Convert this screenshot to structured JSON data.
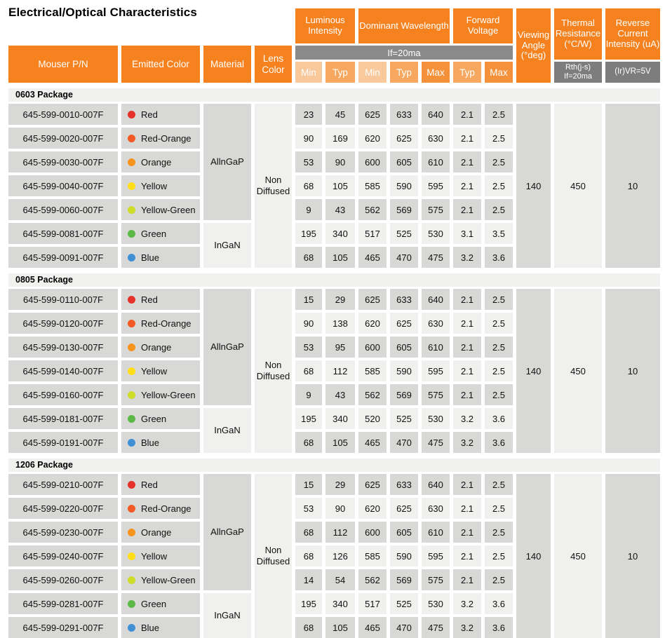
{
  "title": "Electrical/Optical Characteristics",
  "table": {
    "columns": {
      "mouser_pn": "Mouser P/N",
      "emitted_color": "Emitted Color",
      "material": "Material",
      "lens_color": "Lens Color",
      "condition_bar": "If=20ma",
      "groups": [
        {
          "label": "Luminous Intensity",
          "subcols": [
            "Min",
            "Typ"
          ]
        },
        {
          "label": "Dominant Wavelength",
          "subcols": [
            "Min",
            "Typ",
            "Max"
          ]
        },
        {
          "label": "Forward Voltage",
          "subcols": [
            "Typ",
            "Max"
          ]
        }
      ],
      "subcol_labels": [
        "Min",
        "Typ",
        "Min",
        "Typ",
        "Max",
        "Typ",
        "Max"
      ],
      "viewing_angle": "Viewing Angle (°deg)",
      "thermal_resistance": {
        "label": "Thermal Resistance (°C/W)",
        "condition": "Rth(j-s) If=20ma"
      },
      "reverse_current": {
        "label": "Reverse Current Intensity (uA)",
        "condition": "(Ir)VR=5V"
      }
    },
    "colors": {
      "header_orange": "#F5821F",
      "subcol_min": "#F9C89B",
      "subcol_typ": "#F7A75F",
      "subcol_max": "#F5913A",
      "condition_gray": "#8A8A8A",
      "dark_condition_gray": "#7D7D7D",
      "cell_gray": "#D8D8D6",
      "cell_light": "#F0F0EE"
    },
    "sections": [
      {
        "name": "0603 Package",
        "lens_color": "Non Diffused",
        "materials": [
          {
            "name": "AllnGaP",
            "row_span": 5
          },
          {
            "name": "InGaN",
            "row_span": 2
          }
        ],
        "viewing_angle": "140",
        "thermal_resistance": "450",
        "reverse_current": "10",
        "rows": [
          {
            "pn": "645-599-0010-007F",
            "color": "Red",
            "dot": "#E6332A",
            "values": [
              "23",
              "45",
              "625",
              "633",
              "640",
              "2.1",
              "2.5"
            ]
          },
          {
            "pn": "645-599-0020-007F",
            "color": "Red-Orange",
            "dot": "#F15A24",
            "values": [
              "90",
              "169",
              "620",
              "625",
              "630",
              "2.1",
              "2.5"
            ]
          },
          {
            "pn": "645-599-0030-007F",
            "color": "Orange",
            "dot": "#F7941E",
            "values": [
              "53",
              "90",
              "600",
              "605",
              "610",
              "2.1",
              "2.5"
            ]
          },
          {
            "pn": "645-599-0040-007F",
            "color": "Yellow",
            "dot": "#FFDE17",
            "values": [
              "68",
              "105",
              "585",
              "590",
              "595",
              "2.1",
              "2.5"
            ]
          },
          {
            "pn": "645-599-0060-007F",
            "color": "Yellow-Green",
            "dot": "#CDDC29",
            "values": [
              "9",
              "43",
              "562",
              "569",
              "575",
              "2.1",
              "2.5"
            ]
          },
          {
            "pn": "645-599-0081-007F",
            "color": "Green",
            "dot": "#5CB947",
            "values": [
              "195",
              "340",
              "517",
              "525",
              "530",
              "3.1",
              "3.5"
            ]
          },
          {
            "pn": "645-599-0091-007F",
            "color": "Blue",
            "dot": "#4090D5",
            "values": [
              "68",
              "105",
              "465",
              "470",
              "475",
              "3.2",
              "3.6"
            ]
          }
        ]
      },
      {
        "name": "0805 Package",
        "lens_color": "Non Diffused",
        "materials": [
          {
            "name": "AllnGaP",
            "row_span": 5
          },
          {
            "name": "InGaN",
            "row_span": 2
          }
        ],
        "viewing_angle": "140",
        "thermal_resistance": "450",
        "reverse_current": "10",
        "rows": [
          {
            "pn": "645-599-0110-007F",
            "color": "Red",
            "dot": "#E6332A",
            "values": [
              "15",
              "29",
              "625",
              "633",
              "640",
              "2.1",
              "2.5"
            ]
          },
          {
            "pn": "645-599-0120-007F",
            "color": "Red-Orange",
            "dot": "#F15A24",
            "values": [
              "90",
              "138",
              "620",
              "625",
              "630",
              "2.1",
              "2.5"
            ]
          },
          {
            "pn": "645-599-0130-007F",
            "color": "Orange",
            "dot": "#F7941E",
            "values": [
              "53",
              "95",
              "600",
              "605",
              "610",
              "2.1",
              "2.5"
            ]
          },
          {
            "pn": "645-599-0140-007F",
            "color": "Yellow",
            "dot": "#FFDE17",
            "values": [
              "68",
              "112",
              "585",
              "590",
              "595",
              "2.1",
              "2.5"
            ]
          },
          {
            "pn": "645-599-0160-007F",
            "color": "Yellow-Green",
            "dot": "#CDDC29",
            "values": [
              "9",
              "43",
              "562",
              "569",
              "575",
              "2.1",
              "2.5"
            ]
          },
          {
            "pn": "645-599-0181-007F",
            "color": "Green",
            "dot": "#5CB947",
            "values": [
              "195",
              "340",
              "520",
              "525",
              "530",
              "3.2",
              "3.6"
            ]
          },
          {
            "pn": "645-599-0191-007F",
            "color": "Blue",
            "dot": "#4090D5",
            "values": [
              "68",
              "105",
              "465",
              "470",
              "475",
              "3.2",
              "3.6"
            ]
          }
        ]
      },
      {
        "name": "1206 Package",
        "lens_color": "Non Diffused",
        "materials": [
          {
            "name": "AllnGaP",
            "row_span": 5
          },
          {
            "name": "InGaN",
            "row_span": 2
          }
        ],
        "viewing_angle": "140",
        "thermal_resistance": "450",
        "reverse_current": "10",
        "rows": [
          {
            "pn": "645-599-0210-007F",
            "color": "Red",
            "dot": "#E6332A",
            "values": [
              "15",
              "29",
              "625",
              "633",
              "640",
              "2.1",
              "2.5"
            ]
          },
          {
            "pn": "645-599-0220-007F",
            "color": "Red-Orange",
            "dot": "#F15A24",
            "values": [
              "53",
              "90",
              "620",
              "625",
              "630",
              "2.1",
              "2.5"
            ]
          },
          {
            "pn": "645-599-0230-007F",
            "color": "Orange",
            "dot": "#F7941E",
            "values": [
              "68",
              "112",
              "600",
              "605",
              "610",
              "2.1",
              "2.5"
            ]
          },
          {
            "pn": "645-599-0240-007F",
            "color": "Yellow",
            "dot": "#FFDE17",
            "values": [
              "68",
              "126",
              "585",
              "590",
              "595",
              "2.1",
              "2.5"
            ]
          },
          {
            "pn": "645-599-0260-007F",
            "color": "Yellow-Green",
            "dot": "#CDDC29",
            "values": [
              "14",
              "54",
              "562",
              "569",
              "575",
              "2.1",
              "2.5"
            ]
          },
          {
            "pn": "645-599-0281-007F",
            "color": "Green",
            "dot": "#5CB947",
            "values": [
              "195",
              "340",
              "517",
              "525",
              "530",
              "3.2",
              "3.6"
            ]
          },
          {
            "pn": "645-599-0291-007F",
            "color": "Blue",
            "dot": "#4090D5",
            "values": [
              "68",
              "105",
              "465",
              "470",
              "475",
              "3.2",
              "3.6"
            ]
          }
        ]
      }
    ]
  }
}
